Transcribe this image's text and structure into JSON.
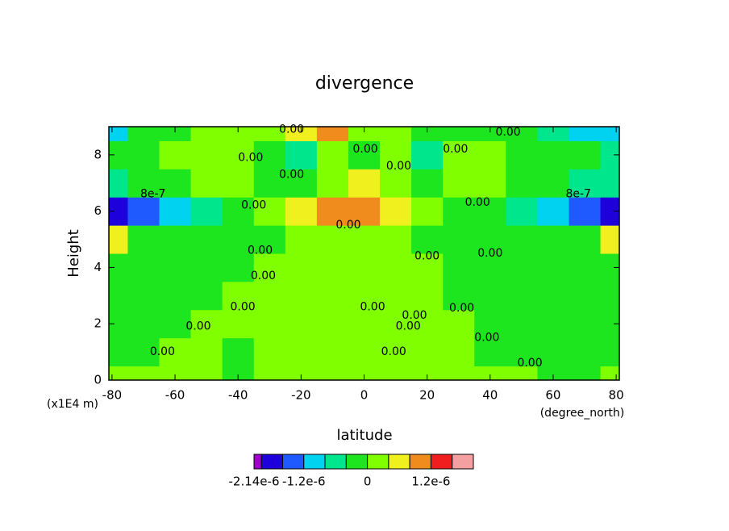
{
  "chart_data": {
    "type": "contour",
    "title": "divergence",
    "x_label": "latitude",
    "y_label": "Height",
    "x_units": "(degree_north)",
    "y_units": "(x1E4 m)",
    "x": [
      -80,
      -70,
      -60,
      -50,
      -40,
      -30,
      -20,
      -10,
      0,
      10,
      20,
      30,
      40,
      50,
      60,
      70,
      80
    ],
    "y": [
      0,
      1,
      2,
      3,
      4,
      5,
      6,
      7,
      8,
      9
    ],
    "z": [
      [
        1e-07,
        1e-07,
        1e-07,
        1e-07,
        -1e-07,
        1e-07,
        1e-07,
        1e-07,
        1e-07,
        1e-07,
        1e-07,
        1e-07,
        1e-07,
        1e-07,
        -1e-07,
        -1e-07,
        1e-07
      ],
      [
        -1e-07,
        -1e-07,
        1e-07,
        1e-07,
        -1e-07,
        1e-07,
        1e-07,
        1e-07,
        1e-07,
        1e-07,
        1e-07,
        1e-07,
        -1e-07,
        -1e-07,
        -1e-07,
        -1e-07,
        -1e-07
      ],
      [
        -1e-07,
        -1e-07,
        -1e-07,
        1e-07,
        1e-07,
        1e-07,
        1e-07,
        1e-07,
        1e-07,
        1e-07,
        1e-07,
        1e-07,
        -1e-07,
        -1e-07,
        -1e-07,
        -1e-07,
        -1e-07
      ],
      [
        -1e-07,
        -1e-07,
        -1e-07,
        -1e-07,
        1e-07,
        1e-07,
        1e-07,
        1e-07,
        1e-07,
        1e-07,
        1e-07,
        -1e-07,
        -1e-07,
        -1e-07,
        -1e-07,
        -1e-07,
        -1e-07
      ],
      [
        -1e-07,
        -1e-07,
        -1e-07,
        -1e-07,
        -1e-07,
        1e-07,
        1e-07,
        1e-07,
        1e-07,
        1e-07,
        1e-07,
        -1e-07,
        -1e-07,
        -1e-07,
        -1e-07,
        -1e-07,
        -1e-07
      ],
      [
        5e-07,
        -1e-07,
        -1e-07,
        -1e-07,
        -1e-07,
        -1e-07,
        1e-07,
        1e-07,
        1e-07,
        1e-07,
        -1e-07,
        -1e-07,
        -1e-07,
        -1e-07,
        -1e-07,
        -1e-07,
        5e-07
      ],
      [
        -1.8e-06,
        -1.4e-06,
        -9e-07,
        -5e-07,
        -1e-07,
        1e-07,
        5e-07,
        9e-07,
        1e-06,
        5e-07,
        1e-07,
        -1e-07,
        -3e-07,
        -6e-07,
        -1e-06,
        -1.4e-06,
        -1.8e-06
      ],
      [
        -6e-07,
        -3e-07,
        -1e-07,
        1e-07,
        1e-07,
        -1e-07,
        -3e-07,
        1e-07,
        5e-07,
        1e-07,
        -3e-07,
        1e-07,
        1e-07,
        -1e-07,
        -3e-07,
        -5e-07,
        -7e-07
      ],
      [
        -3e-07,
        -1e-07,
        1e-07,
        1e-07,
        1e-07,
        -1e-07,
        -5e-07,
        1e-07,
        -2e-07,
        1e-07,
        -5e-07,
        1e-07,
        1e-07,
        -1e-07,
        -1e-07,
        -3e-07,
        -6e-07
      ],
      [
        -9e-07,
        -3e-07,
        -1e-07,
        1e-07,
        1e-07,
        1e-07,
        5e-07,
        9e-07,
        1e-07,
        1e-07,
        -3e-07,
        -3e-07,
        -1e-07,
        -1e-07,
        -5e-07,
        -9e-07,
        -1e-06
      ]
    ],
    "xlim": [
      -81,
      81
    ],
    "ylim": [
      0,
      9
    ],
    "xticks": [
      -80,
      -60,
      -40,
      -20,
      0,
      20,
      40,
      60,
      80
    ],
    "yticks": [
      0,
      2,
      4,
      6,
      8
    ],
    "levels": [
      -2.14e-06,
      -2e-06,
      -1.6e-06,
      -1.2e-06,
      -8e-07,
      -4e-07,
      0,
      4e-07,
      8e-07,
      1.2e-06,
      1.6e-06,
      2e-06
    ],
    "colors": [
      "#a000c8",
      "#1e00dc",
      "#1e5aff",
      "#00d2f0",
      "#00e68c",
      "#1ee61e",
      "#80ff00",
      "#f0f01e",
      "#f08c1e",
      "#f01e1e",
      "#f5a0a0"
    ],
    "colorbar_ticks": [
      {
        "value": -2.14e-06,
        "label": "-2.14e-6"
      },
      {
        "value": -1.2e-06,
        "label": "-1.2e-6"
      },
      0,
      {
        "value": 1.2e-06,
        "label": "1.2e-6"
      }
    ],
    "contour_labels": [
      {
        "text": "0.00",
        "x": -23,
        "y": 8.9
      },
      {
        "text": "0.00",
        "x": 45.7,
        "y": 8.8
      },
      {
        "text": "0.00",
        "x": 0.4,
        "y": 8.2
      },
      {
        "text": "0.00",
        "x": 29,
        "y": 8.2
      },
      {
        "text": "0.00",
        "x": -36,
        "y": 7.9
      },
      {
        "text": "0.00",
        "x": -23,
        "y": 7.3
      },
      {
        "text": "0.00",
        "x": 11,
        "y": 7.6
      },
      {
        "text": "8e-7",
        "x": -67,
        "y": 6.6
      },
      {
        "text": "8e-7",
        "x": 68,
        "y": 6.6
      },
      {
        "text": "0.00",
        "x": -35,
        "y": 6.2
      },
      {
        "text": "0.00",
        "x": 36,
        "y": 6.3
      },
      {
        "text": "0.00",
        "x": -5,
        "y": 5.5
      },
      {
        "text": "0.00",
        "x": -33,
        "y": 4.6
      },
      {
        "text": "0.00",
        "x": 20,
        "y": 4.4
      },
      {
        "text": "0.00",
        "x": 40,
        "y": 4.5
      },
      {
        "text": "0.00",
        "x": -32,
        "y": 3.7
      },
      {
        "text": "0.00",
        "x": -38.5,
        "y": 2.6
      },
      {
        "text": "0.00",
        "x": 2.7,
        "y": 2.6
      },
      {
        "text": "0.00",
        "x": 16,
        "y": 2.3
      },
      {
        "text": "0.00",
        "x": 31,
        "y": 2.55
      },
      {
        "text": "0.00",
        "x": 14,
        "y": 1.9
      },
      {
        "text": "0.00",
        "x": -52.6,
        "y": 1.9
      },
      {
        "text": "0.00",
        "x": 39,
        "y": 1.5
      },
      {
        "text": "0.00",
        "x": -64,
        "y": 1.0
      },
      {
        "text": "0.00",
        "x": 9.4,
        "y": 1.0
      },
      {
        "text": "0.00",
        "x": 52.6,
        "y": 0.6
      }
    ]
  }
}
